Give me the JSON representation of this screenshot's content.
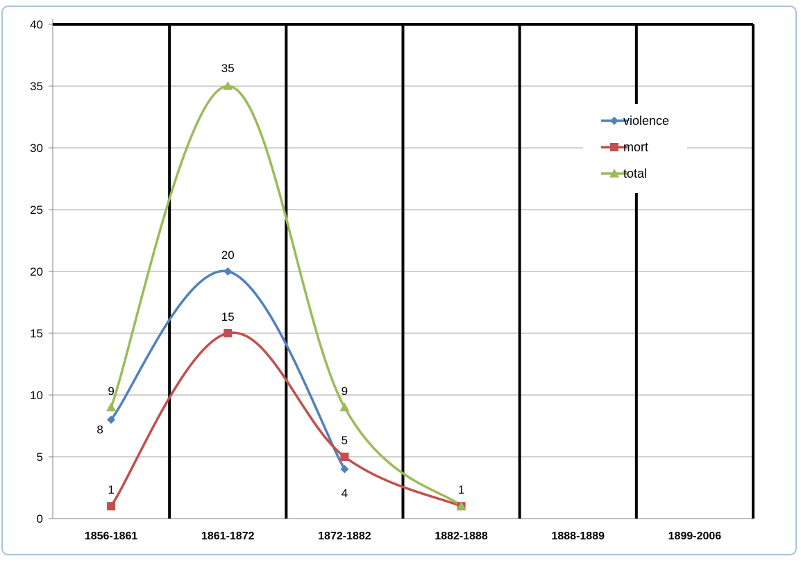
{
  "chart_data": {
    "type": "line",
    "title": "",
    "xlabel": "",
    "ylabel": "",
    "categories": [
      "1856-1861",
      "1861-1872",
      "1872-1882",
      "1882-1888",
      "1888-1889",
      "1899-2006"
    ],
    "ylim": [
      0,
      40
    ],
    "yticks": [
      0,
      5,
      10,
      15,
      20,
      25,
      30,
      35,
      40
    ],
    "grid": true,
    "smooth": true,
    "legend_position": "right",
    "series": [
      {
        "name": "violence",
        "color": "#4f81bd",
        "marker": "diamond",
        "values": [
          8,
          20,
          4,
          null,
          null,
          null
        ],
        "labels": [
          "8",
          "20",
          "4",
          "",
          "",
          ""
        ]
      },
      {
        "name": "mort",
        "color": "#c0504d",
        "marker": "square",
        "values": [
          1,
          15,
          5,
          1,
          null,
          null
        ],
        "labels": [
          "1",
          "15",
          "5",
          "1",
          "",
          ""
        ]
      },
      {
        "name": "total",
        "color": "#9bbb59",
        "marker": "triangle",
        "values": [
          9,
          35,
          9,
          1,
          null,
          null
        ],
        "labels": [
          "9",
          "35",
          "9",
          "",
          "",
          ""
        ]
      }
    ]
  }
}
